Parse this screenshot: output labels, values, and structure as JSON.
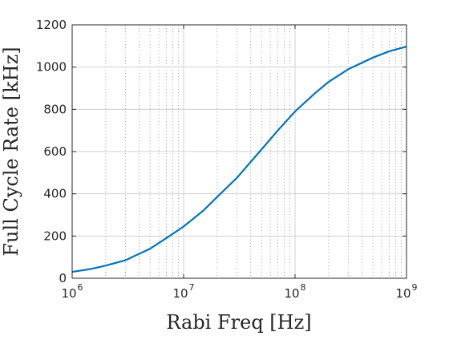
{
  "chart_data": {
    "type": "line",
    "title": "",
    "xlabel": "Rabi Freq [Hz]",
    "ylabel": "Full Cycle Rate [kHz]",
    "xscale": "log",
    "xlim": [
      1000000,
      1000000000
    ],
    "ylim": [
      0,
      1200
    ],
    "xticks": [
      {
        "value": 1000000,
        "base": "10",
        "exp": "6"
      },
      {
        "value": 10000000,
        "base": "10",
        "exp": "7"
      },
      {
        "value": 100000000,
        "base": "10",
        "exp": "8"
      },
      {
        "value": 1000000000,
        "base": "10",
        "exp": "9"
      }
    ],
    "yticks": [
      0,
      200,
      400,
      600,
      800,
      1000,
      1200
    ],
    "yticklabels": [
      "0",
      "200",
      "400",
      "600",
      "800",
      "1000",
      "1200"
    ],
    "grid": {
      "major": true,
      "minor_x": true
    },
    "series": [
      {
        "color": "#0072bd",
        "x": [
          1000000,
          1500000,
          2000000,
          3000000,
          5000000,
          7000000,
          10000000,
          15000000,
          20000000,
          30000000,
          50000000,
          70000000,
          100000000,
          150000000,
          200000000,
          300000000,
          500000000,
          700000000,
          1000000000
        ],
        "y": [
          30,
          45,
          60,
          85,
          140,
          190,
          245,
          320,
          385,
          475,
          610,
          700,
          790,
          875,
          930,
          990,
          1045,
          1075,
          1097
        ]
      }
    ]
  },
  "colors": {
    "background": "#ffffff",
    "axes_background": "#ffffff",
    "axis": "#262626",
    "grid": "#d0d0d0",
    "minor_grid": "#8c8c8c",
    "line": "#0072bd"
  }
}
